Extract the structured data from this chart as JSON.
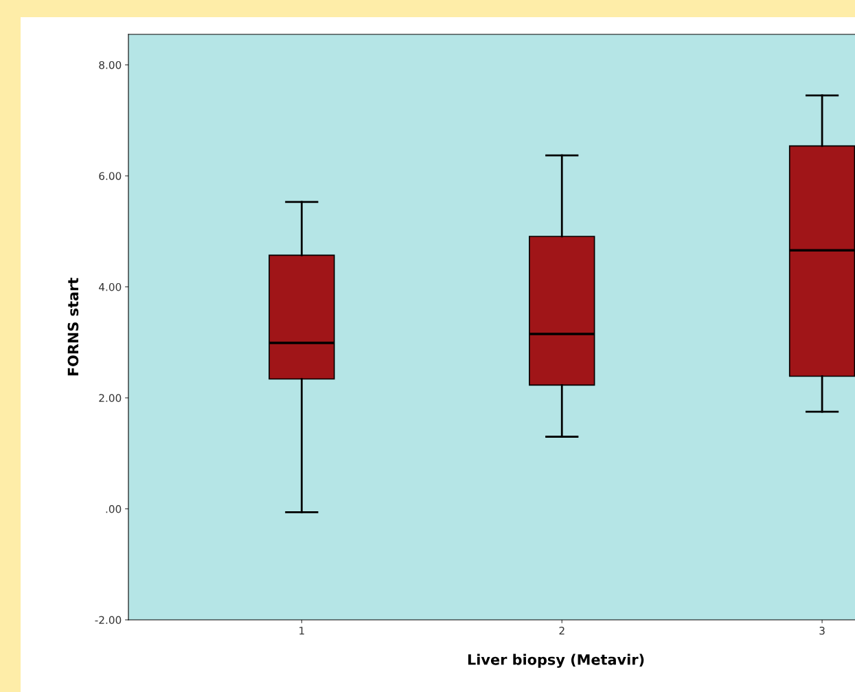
{
  "chart_data": {
    "type": "box",
    "xlabel": "Liver biopsy (Metavir)",
    "ylabel": "FORNS start",
    "categories": [
      "1",
      "2",
      "3"
    ],
    "series": [
      {
        "color": "#a01518",
        "boxes": [
          {
            "low": -0.06,
            "q1": 2.34,
            "median": 2.99,
            "q3": 4.57,
            "high": 5.53
          },
          {
            "low": 1.3,
            "q1": 2.23,
            "median": 3.15,
            "q3": 4.91,
            "high": 6.37
          },
          {
            "low": 1.75,
            "q1": 2.39,
            "median": 4.66,
            "q3": 6.54,
            "high": 7.45
          }
        ]
      }
    ],
    "ylim": [
      -2,
      8.55
    ],
    "yticks": [
      {
        "value": -2,
        "label": "-2.00"
      },
      {
        "value": 0,
        "label": ".00"
      },
      {
        "value": 2,
        "label": "2.00"
      },
      {
        "value": 4,
        "label": "4.00"
      },
      {
        "value": 6,
        "label": "6.00"
      },
      {
        "value": 8,
        "label": "8.00"
      }
    ],
    "grid": false,
    "legend": false
  }
}
